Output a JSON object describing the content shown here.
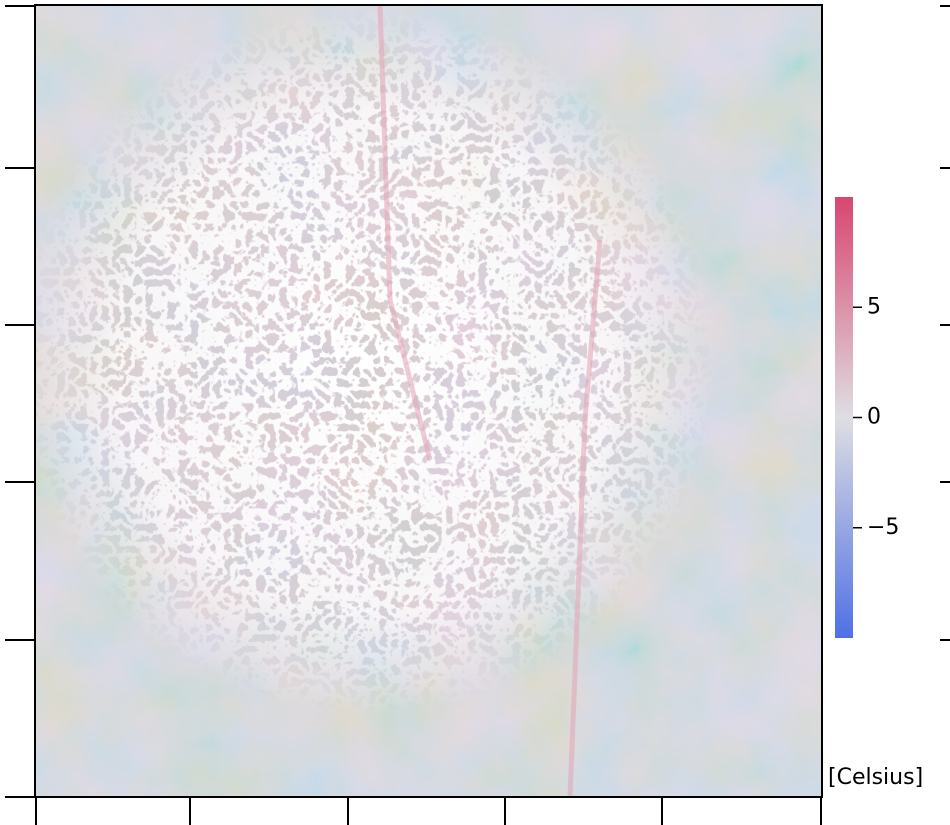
{
  "colorbar": {
    "label": "[Celsius]",
    "lim": [
      -10,
      10
    ],
    "ticks": [
      5,
      0,
      {
        "value": -5,
        "label": "−5"
      }
    ],
    "colors": [
      "#5070e4",
      "#dedee2",
      "#d94570"
    ]
  }
}
